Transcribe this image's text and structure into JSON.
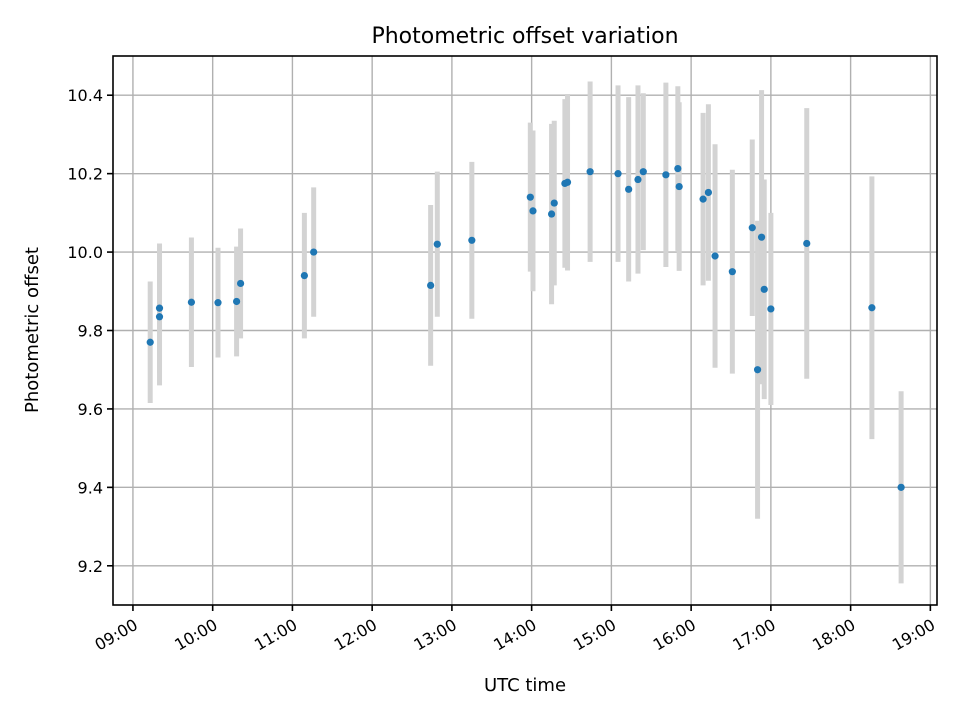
{
  "chart_data": {
    "type": "scatter",
    "title": "Photometric offset variation",
    "xlabel": "UTC time",
    "ylabel": "Photometric offset",
    "xlim": [
      "08:45",
      "19:05"
    ],
    "ylim": [
      9.1,
      10.5
    ],
    "x_ticks": [
      "09:00",
      "10:00",
      "11:00",
      "12:00",
      "13:00",
      "14:00",
      "15:00",
      "16:00",
      "17:00",
      "18:00",
      "19:00"
    ],
    "y_ticks": [
      "9.2",
      "9.4",
      "9.6",
      "9.8",
      "10.0",
      "10.2",
      "10.4"
    ],
    "grid": true,
    "point_color": "#1f77b4",
    "errorbar_color": "#d3d3d3",
    "series": [
      {
        "points": [
          {
            "time": "09:13",
            "y": 9.77,
            "err": 0.155
          },
          {
            "time": "09:20",
            "y": 9.835,
            "err": 0.175
          },
          {
            "time": "09:20",
            "y": 9.857,
            "err": 0.165
          },
          {
            "time": "09:44",
            "y": 9.872,
            "err": 0.165
          },
          {
            "time": "10:04",
            "y": 9.871,
            "err": 0.14
          },
          {
            "time": "10:18",
            "y": 9.874,
            "err": 0.14
          },
          {
            "time": "10:21",
            "y": 9.92,
            "err": 0.14
          },
          {
            "time": "11:09",
            "y": 9.94,
            "err": 0.16
          },
          {
            "time": "11:16",
            "y": 10.0,
            "err": 0.165
          },
          {
            "time": "12:44",
            "y": 9.915,
            "err": 0.205
          },
          {
            "time": "12:49",
            "y": 10.02,
            "err": 0.185
          },
          {
            "time": "13:15",
            "y": 10.03,
            "err": 0.2
          },
          {
            "time": "13:59",
            "y": 10.14,
            "err": 0.19
          },
          {
            "time": "14:01",
            "y": 10.105,
            "err": 0.205
          },
          {
            "time": "14:15",
            "y": 10.097,
            "err": 0.23
          },
          {
            "time": "14:17",
            "y": 10.125,
            "err": 0.21
          },
          {
            "time": "14:25",
            "y": 10.175,
            "err": 0.215
          },
          {
            "time": "14:27",
            "y": 10.178,
            "err": 0.225
          },
          {
            "time": "14:44",
            "y": 10.205,
            "err": 0.23
          },
          {
            "time": "15:05",
            "y": 10.2,
            "err": 0.225
          },
          {
            "time": "15:13",
            "y": 10.16,
            "err": 0.235
          },
          {
            "time": "15:20",
            "y": 10.185,
            "err": 0.24
          },
          {
            "time": "15:24",
            "y": 10.205,
            "err": 0.2
          },
          {
            "time": "15:41",
            "y": 10.197,
            "err": 0.235
          },
          {
            "time": "15:50",
            "y": 10.213,
            "err": 0.21
          },
          {
            "time": "15:51",
            "y": 10.167,
            "err": 0.215
          },
          {
            "time": "16:09",
            "y": 10.135,
            "err": 0.22
          },
          {
            "time": "16:13",
            "y": 10.152,
            "err": 0.225
          },
          {
            "time": "16:18",
            "y": 9.99,
            "err": 0.285
          },
          {
            "time": "16:31",
            "y": 9.95,
            "err": 0.26
          },
          {
            "time": "16:46",
            "y": 10.062,
            "err": 0.225
          },
          {
            "time": "16:50",
            "y": 9.7,
            "err": 0.38
          },
          {
            "time": "16:53",
            "y": 10.038,
            "err": 0.375
          },
          {
            "time": "16:55",
            "y": 9.905,
            "err": 0.28
          },
          {
            "time": "17:00",
            "y": 9.855,
            "err": 0.245
          },
          {
            "time": "17:27",
            "y": 10.022,
            "err": 0.345
          },
          {
            "time": "18:16",
            "y": 9.858,
            "err": 0.335
          },
          {
            "time": "18:38",
            "y": 9.4,
            "err": 0.245
          }
        ]
      }
    ]
  }
}
